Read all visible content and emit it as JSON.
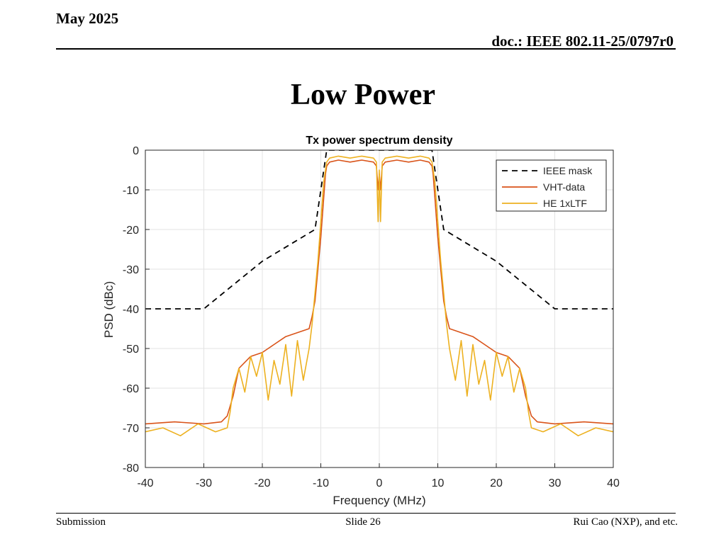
{
  "slide": {
    "date": "May 2025",
    "doc_id": "doc.: IEEE 802.11-25/0797r0",
    "title": "Low Power",
    "footer_left": "Submission",
    "footer_center": "Slide 26",
    "footer_right": "Rui Cao (NXP), and etc."
  },
  "chart_data": {
    "type": "line",
    "title": "Tx power spectrum density",
    "xlabel": "Frequency (MHz)",
    "ylabel": "PSD (dBc)",
    "xlim": [
      -40,
      40
    ],
    "ylim": [
      -80,
      0
    ],
    "xticks": [
      -40,
      -30,
      -20,
      -10,
      0,
      10,
      20,
      30,
      40
    ],
    "yticks": [
      0,
      -10,
      -20,
      -30,
      -40,
      -50,
      -60,
      -70,
      -80
    ],
    "grid": true,
    "legend_position": "top-right",
    "series": [
      {
        "name": "IEEE mask",
        "color": "#000000",
        "style": "dashed",
        "x": [
          -40,
          -30,
          -20,
          -11,
          -9,
          9,
          11,
          20,
          30,
          40
        ],
        "y": [
          -40,
          -40,
          -28,
          -20,
          0,
          0,
          -20,
          -28,
          -40,
          -40
        ]
      },
      {
        "name": "VHT-data",
        "color": "#d95319",
        "style": "solid",
        "x": [
          -40,
          -35,
          -30,
          -27,
          -26,
          -25,
          -24,
          -22,
          -20,
          -18,
          -16,
          -14,
          -12,
          -11.5,
          -11,
          -10.5,
          -10,
          -9.5,
          -9.2,
          -9,
          -8.5,
          -7,
          -5,
          -3,
          -1,
          -0.5,
          -0.2,
          0,
          0.2,
          0.5,
          1,
          3,
          5,
          7,
          8.5,
          9,
          9.2,
          9.5,
          10,
          10.5,
          11,
          11.5,
          12,
          14,
          16,
          18,
          20,
          22,
          24,
          25,
          26,
          27,
          30,
          35,
          40
        ],
        "y": [
          -69,
          -68.5,
          -69,
          -68.5,
          -67,
          -62,
          -55,
          -52,
          -51,
          -49,
          -47,
          -46,
          -45,
          -42,
          -38,
          -30,
          -22,
          -12,
          -6,
          -4,
          -3,
          -2.5,
          -3,
          -2.5,
          -3,
          -4,
          -10,
          -6,
          -10,
          -4,
          -3,
          -2.5,
          -3,
          -2.5,
          -3,
          -4,
          -6,
          -12,
          -22,
          -30,
          -38,
          -42,
          -45,
          -46,
          -47,
          -49,
          -51,
          -52,
          -55,
          -62,
          -67,
          -68.5,
          -69,
          -68.5,
          -69
        ]
      },
      {
        "name": "HE 1xLTF",
        "color": "#edb120",
        "style": "solid",
        "x": [
          -40,
          -37,
          -34,
          -31,
          -28,
          -26,
          -25.5,
          -25,
          -24,
          -23,
          -22,
          -21,
          -20,
          -19,
          -18,
          -17,
          -16,
          -15,
          -14,
          -13,
          -12,
          -11.5,
          -11,
          -10.5,
          -10,
          -9.5,
          -9,
          -8.5,
          -7,
          -5,
          -3,
          -1,
          -0.5,
          -0.2,
          0,
          0.2,
          0.5,
          1,
          3,
          5,
          7,
          8.5,
          9,
          9.5,
          10,
          10.5,
          11,
          11.5,
          12,
          13,
          14,
          15,
          16,
          17,
          18,
          19,
          20,
          21,
          22,
          23,
          24,
          25,
          25.5,
          26,
          28,
          31,
          34,
          37,
          40
        ],
        "y": [
          -71,
          -70,
          -72,
          -69,
          -71,
          -70,
          -66,
          -60,
          -55,
          -61,
          -52,
          -57,
          -51,
          -63,
          -53,
          -59,
          -49,
          -62,
          -48,
          -58,
          -50,
          -44,
          -36,
          -28,
          -18,
          -8,
          -3,
          -2,
          -1.5,
          -2,
          -1.5,
          -2,
          -3,
          -18,
          -5,
          -18,
          -3,
          -2,
          -1.5,
          -2,
          -1.5,
          -2,
          -3,
          -8,
          -18,
          -28,
          -36,
          -44,
          -50,
          -58,
          -48,
          -62,
          -49,
          -59,
          -53,
          -63,
          -51,
          -57,
          -52,
          -61,
          -55,
          -60,
          -66,
          -70,
          -71,
          -69,
          -72,
          -70,
          -71
        ]
      }
    ]
  }
}
